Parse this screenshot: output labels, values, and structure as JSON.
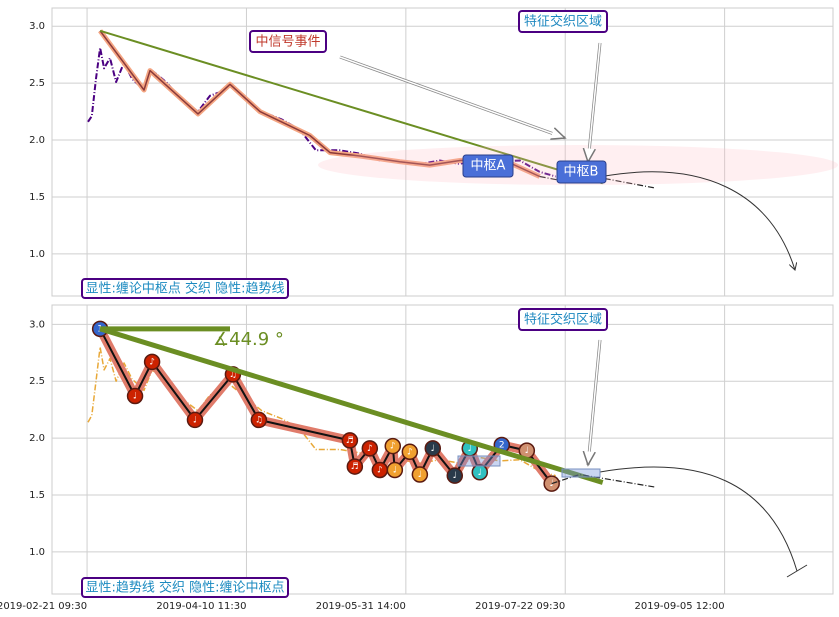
{
  "chart_data": [
    {
      "type": "line",
      "xlim": [
        -0.22,
        4.68
      ],
      "ylim": [
        0.63,
        3.16
      ],
      "yticks": [
        {
          "value": 1,
          "label": "1.0"
        },
        {
          "value": 1.5,
          "label": "1.5"
        },
        {
          "value": 2,
          "label": "2.0"
        },
        {
          "value": 2.5,
          "label": "2.5"
        },
        {
          "value": 3,
          "label": "3.0"
        }
      ],
      "grid": true,
      "series": [
        {
          "color": "#4b0082",
          "x": [
            0.006,
            0.03,
            0.056,
            0.082,
            0.107,
            0.144,
            0.182,
            0.232,
            0.282,
            0.357,
            0.408,
            0.495,
            0.583,
            0.696,
            0.771,
            0.834,
            0.897,
            0.984,
            1.097,
            1.223,
            1.335,
            1.436,
            1.586,
            1.712,
            1.837,
            1.962,
            2.088,
            2.213,
            2.339,
            2.464,
            2.589,
            2.715,
            2.84,
            2.94
          ],
          "values": [
            2.16,
            2.21,
            2.54,
            2.81,
            2.63,
            2.72,
            2.51,
            2.68,
            2.54,
            2.44,
            2.61,
            2.51,
            2.37,
            2.25,
            2.39,
            2.42,
            2.49,
            2.39,
            2.25,
            2.18,
            2.09,
            1.91,
            1.91,
            1.88,
            1.82,
            1.82,
            1.79,
            1.82,
            1.79,
            1.84,
            1.81,
            1.82,
            1.72,
            1.68
          ]
        },
        {
          "color": "#8b3a3a",
          "halo": "#f4a582",
          "x": [
            0.082,
            0.357,
            0.395,
            0.696,
            0.897,
            1.085,
            1.398,
            1.524,
            1.712,
            1.962,
            2.15,
            2.339,
            2.589,
            2.84
          ],
          "values": [
            2.96,
            2.44,
            2.61,
            2.23,
            2.49,
            2.25,
            2.04,
            1.89,
            1.86,
            1.81,
            1.78,
            1.82,
            1.84,
            1.68
          ]
        },
        {
          "color": "#6b8e23",
          "x": [
            0.082,
            3.235
          ],
          "values": [
            2.96,
            1.62
          ]
        },
        {
          "color": "#222222",
          "x": [
            2.84,
            3.028,
            3.216,
            3.561
          ],
          "values": [
            1.68,
            1.63,
            1.67,
            1.58
          ]
        }
      ],
      "annotations": {
        "signal": "中信号事件",
        "zone": "特征交织区域",
        "pivot_a": "中枢A",
        "pivot_b": "中枢B",
        "legend": "显性:缠论中枢点 交织 隐性:趋势线"
      }
    },
    {
      "type": "line",
      "xlim": [
        -0.22,
        4.68
      ],
      "ylim": [
        0.63,
        3.17
      ],
      "xticks": [
        {
          "value": 0,
          "label": "2019-02-21 09:30"
        },
        {
          "value": 1,
          "label": "2019-04-10 11:30"
        },
        {
          "value": 2,
          "label": "2019-05-31 14:00"
        },
        {
          "value": 3,
          "label": "2019-07-22 09:30"
        },
        {
          "value": 4,
          "label": "2019-09-05 12:00"
        }
      ],
      "yticks": [
        {
          "value": 1,
          "label": "1.0"
        },
        {
          "value": 1.5,
          "label": "1.5"
        },
        {
          "value": 2,
          "label": "2.0"
        },
        {
          "value": 2.5,
          "label": "2.5"
        },
        {
          "value": 3,
          "label": "3.0"
        }
      ],
      "grid": true,
      "series": [
        {
          "color": "#e8a838",
          "x": [
            0.006,
            0.03,
            0.056,
            0.082,
            0.107,
            0.144,
            0.182,
            0.232,
            0.282,
            0.357,
            0.408,
            0.495,
            0.583,
            0.696,
            0.771,
            0.834,
            0.897,
            0.984,
            1.097,
            1.223,
            1.335,
            1.436,
            1.586,
            1.712,
            1.837,
            1.962,
            2.088,
            2.213,
            2.339,
            2.464,
            2.589,
            2.715,
            2.84,
            2.94
          ],
          "values": [
            2.14,
            2.2,
            2.5,
            2.8,
            2.6,
            2.7,
            2.5,
            2.66,
            2.52,
            2.42,
            2.6,
            2.5,
            2.36,
            2.24,
            2.38,
            2.41,
            2.47,
            2.37,
            2.24,
            2.17,
            2.08,
            1.9,
            1.9,
            1.87,
            1.81,
            1.81,
            1.78,
            1.81,
            1.78,
            1.83,
            1.8,
            1.81,
            1.71,
            1.67
          ]
        },
        {
          "color": "#111111",
          "halo": "#e07b6a",
          "x": [
            0.082,
            0.301,
            0.408,
            0.677,
            0.915,
            1.078,
            1.649,
            1.68,
            1.774,
            1.837,
            1.918,
            1.931,
            2.025,
            2.088,
            2.169,
            2.307,
            2.401,
            2.464,
            2.602,
            2.759,
            2.915
          ],
          "values": [
            2.96,
            2.37,
            2.67,
            2.16,
            2.56,
            2.16,
            1.98,
            1.75,
            1.91,
            1.72,
            1.93,
            1.72,
            1.88,
            1.68,
            1.91,
            1.67,
            1.91,
            1.7,
            1.94,
            1.89,
            1.6
          ],
          "marker_colors": [
            "#3366cc",
            "#cc2200",
            "#cc2200",
            "#cc2200",
            "#cc2200",
            "#cc2200",
            "#cc2200",
            "#cc2200",
            "#cc2200",
            "#cc2200",
            "#f0a030",
            "#f0a030",
            "#f0a030",
            "#f0a030",
            "#2a3a4a",
            "#2a3a4a",
            "#30c0c0",
            "#30c0c0",
            "#3366cc",
            "#d09070",
            "#d09070"
          ],
          "marker_labels": [
            "1",
            "♩",
            "♪",
            "♩",
            "♫",
            "♫",
            "♬",
            "♬",
            "♪",
            "♪",
            "♪",
            "♩",
            "♪",
            "♩",
            "♩",
            "♩",
            "♩",
            "♩",
            "2",
            "♩",
            "♩"
          ]
        },
        {
          "color": "#6b8e23",
          "x": [
            0.082,
            3.235
          ],
          "values": [
            2.96,
            1.61
          ]
        },
        {
          "color": "#6b8e23",
          "x": [
            0.082,
            0.897
          ],
          "values": [
            2.96,
            2.96
          ]
        },
        {
          "color": "#222222",
          "x": [
            2.915,
            3.091,
            3.561
          ],
          "values": [
            1.6,
            1.68,
            1.57
          ]
        }
      ],
      "annotations": {
        "zone": "特征交织区域",
        "angle": "∡44.9 °",
        "legend": "显性:趋势线 交织 隐性:缠论中枢点"
      }
    }
  ]
}
